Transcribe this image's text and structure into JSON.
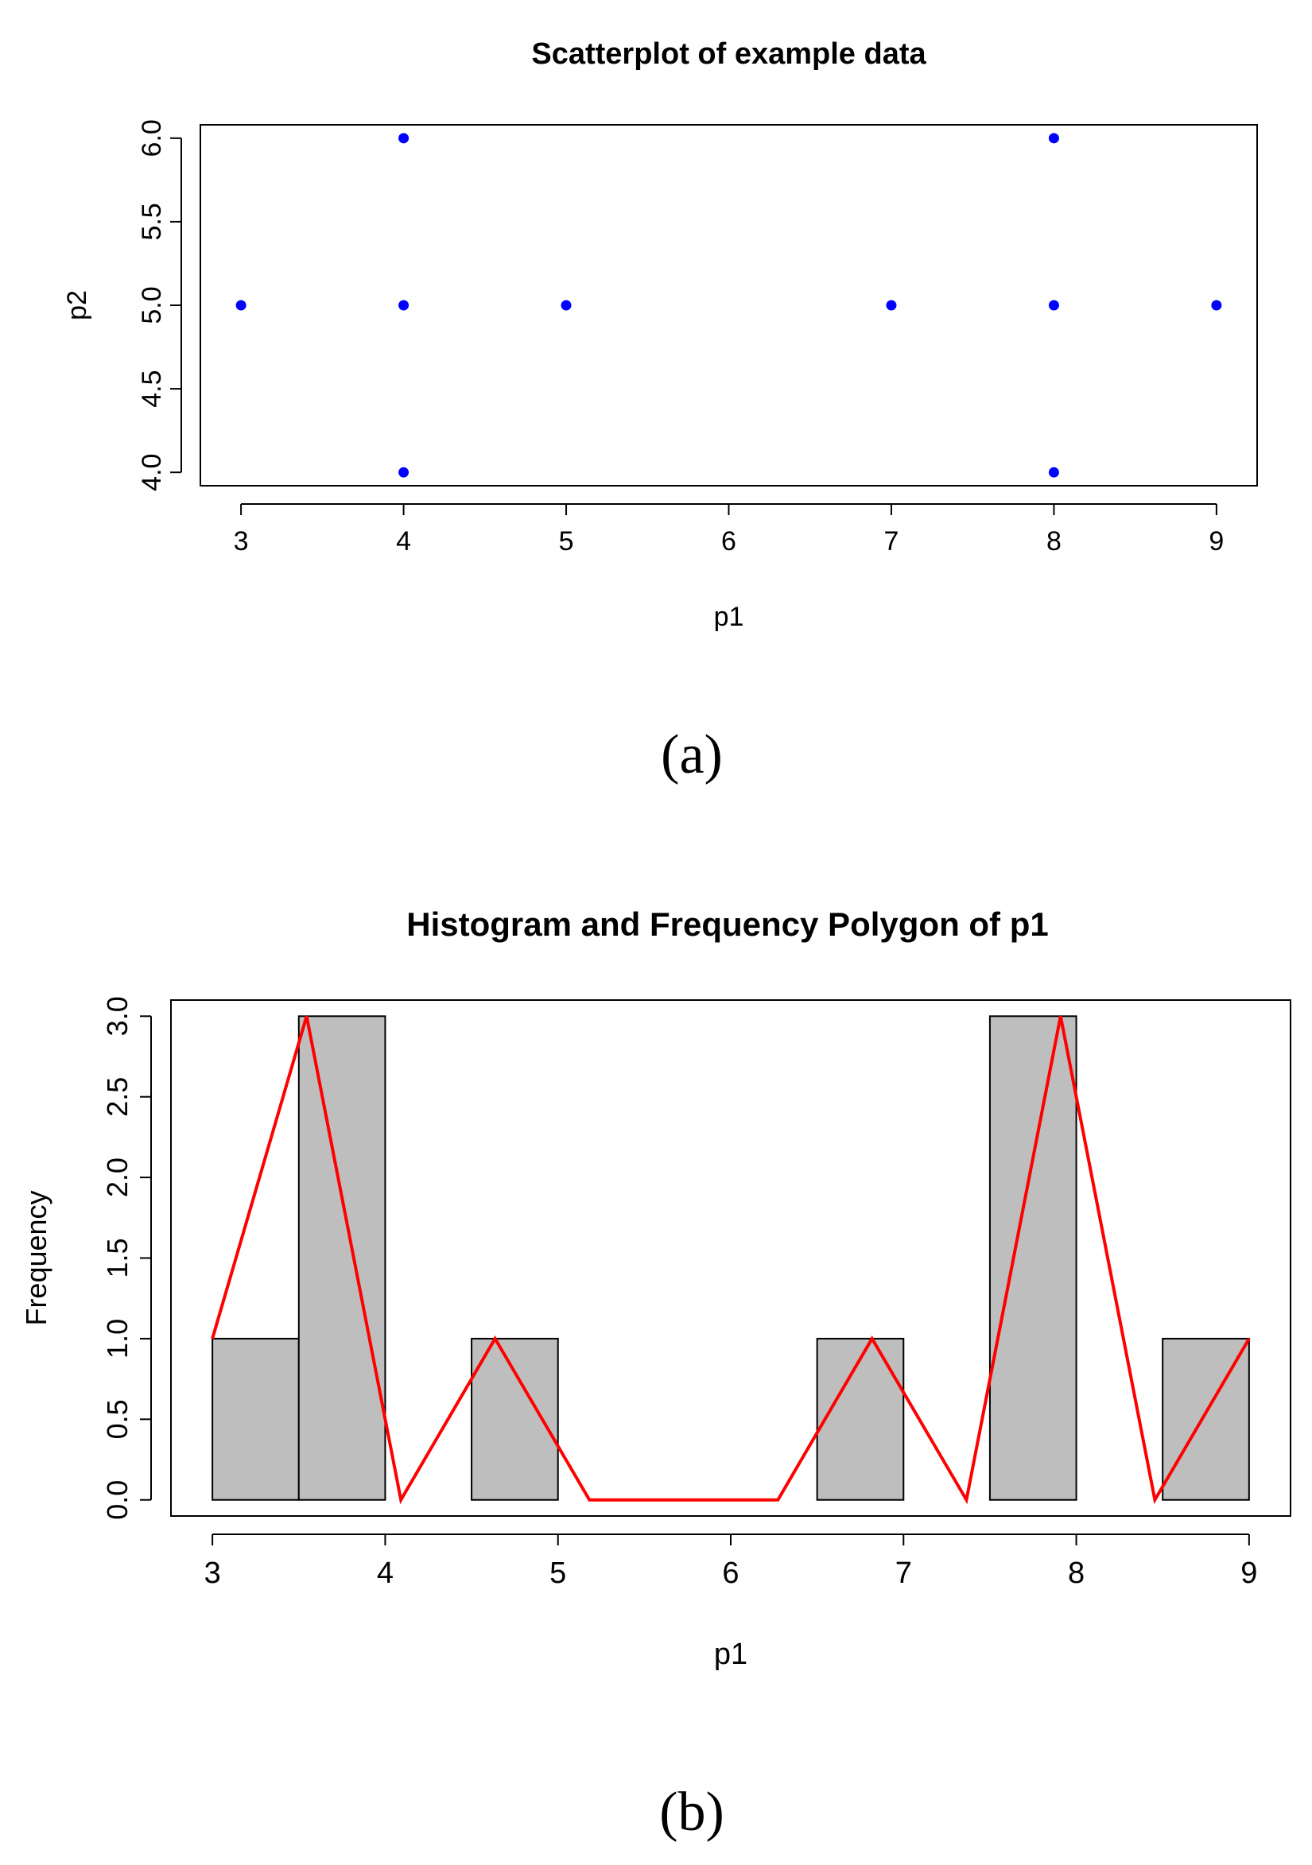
{
  "chart_data": [
    {
      "type": "scatter",
      "title": "Scatterplot of example data",
      "xlabel": "p1",
      "ylabel": "p2",
      "xlim": [
        2.75,
        9.25
      ],
      "ylim": [
        3.92,
        6.08
      ],
      "xticks": [
        "3",
        "4",
        "5",
        "6",
        "7",
        "8",
        "9"
      ],
      "yticks": [
        "4.0",
        "4.5",
        "5.0",
        "5.5",
        "6.0"
      ],
      "point_color": "#0000ff",
      "points": [
        {
          "x": 3,
          "y": 5
        },
        {
          "x": 4,
          "y": 6
        },
        {
          "x": 4,
          "y": 5
        },
        {
          "x": 4,
          "y": 4
        },
        {
          "x": 5,
          "y": 5
        },
        {
          "x": 7,
          "y": 5
        },
        {
          "x": 8,
          "y": 6
        },
        {
          "x": 8,
          "y": 5
        },
        {
          "x": 8,
          "y": 4
        },
        {
          "x": 9,
          "y": 5
        }
      ],
      "panel_label": "(a)"
    },
    {
      "type": "bar",
      "subtype": "histogram with frequency polygon",
      "title": "Histogram and Frequency Polygon of p1",
      "xlabel": "p1",
      "ylabel": "Frequency",
      "xlim": [
        2.76,
        9.24
      ],
      "ylim": [
        -0.1,
        3.1
      ],
      "xticks": [
        "3",
        "4",
        "5",
        "6",
        "7",
        "8",
        "9"
      ],
      "yticks": [
        "0.0",
        "0.5",
        "1.0",
        "1.5",
        "2.0",
        "2.5",
        "3.0"
      ],
      "bar_color": "#bebebe",
      "bins": [
        {
          "start": 3.0,
          "end": 3.5,
          "count": 1
        },
        {
          "start": 3.5,
          "end": 4.0,
          "count": 3
        },
        {
          "start": 4.0,
          "end": 4.5,
          "count": 0
        },
        {
          "start": 4.5,
          "end": 5.0,
          "count": 1
        },
        {
          "start": 5.0,
          "end": 5.5,
          "count": 0
        },
        {
          "start": 5.5,
          "end": 6.0,
          "count": 0
        },
        {
          "start": 6.0,
          "end": 6.5,
          "count": 0
        },
        {
          "start": 6.5,
          "end": 7.0,
          "count": 1
        },
        {
          "start": 7.0,
          "end": 7.5,
          "count": 0
        },
        {
          "start": 7.5,
          "end": 8.0,
          "count": 3
        },
        {
          "start": 8.0,
          "end": 8.5,
          "count": 0
        },
        {
          "start": 8.5,
          "end": 9.0,
          "count": 1
        }
      ],
      "polygon": {
        "color": "#ff0000",
        "points": [
          {
            "x": 3.0,
            "y": 1
          },
          {
            "x": 3.545,
            "y": 3
          },
          {
            "x": 4.091,
            "y": 0
          },
          {
            "x": 4.636,
            "y": 1
          },
          {
            "x": 5.182,
            "y": 0
          },
          {
            "x": 5.727,
            "y": 0
          },
          {
            "x": 6.273,
            "y": 0
          },
          {
            "x": 6.818,
            "y": 1
          },
          {
            "x": 7.364,
            "y": 0
          },
          {
            "x": 7.909,
            "y": 3
          },
          {
            "x": 8.455,
            "y": 0
          },
          {
            "x": 9.0,
            "y": 1
          }
        ]
      },
      "panel_label": "(b)"
    }
  ]
}
